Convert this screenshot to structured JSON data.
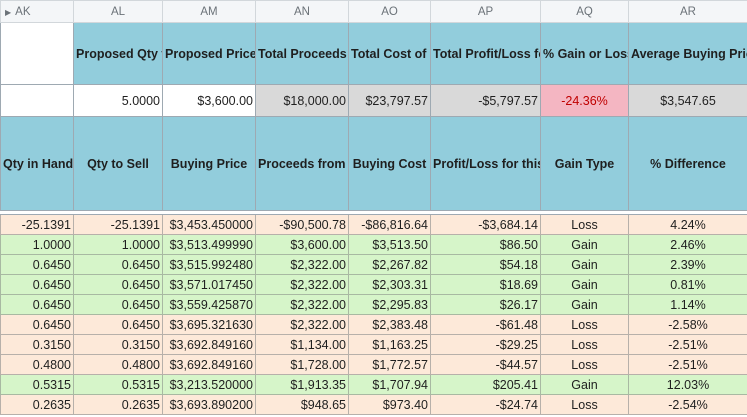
{
  "column_headers": [
    "AK",
    "AL",
    "AM",
    "AN",
    "AO",
    "AP",
    "AQ",
    "AR"
  ],
  "header_row": {
    "al": "Proposed Qty to Sell",
    "am": "Proposed Price to Sell",
    "an": "Total Proceeds from Sell",
    "ao": "Total Cost of Buying",
    "ap": "Total Profit/Loss for this transaction",
    "aq": "% Gain or Loss",
    "ar": "Average Buying Price of Total Available Coins"
  },
  "summary_row": {
    "qty": "5.0000",
    "price": "$3,600.00",
    "proceeds": "$18,000.00",
    "cost": "$23,797.57",
    "profit": "-$5,797.57",
    "gain_pct": "-24.36%",
    "avg_price": "$3,547.65"
  },
  "table_header": {
    "ak": "Qty in Hand",
    "al": "Qty to Sell",
    "am": "Buying Price",
    "an": "Proceeds from Sell",
    "ao": "Buying Cost",
    "ap": "Profit/Loss for this transaction",
    "aq": "Gain Type",
    "ar": "% Difference"
  },
  "rows": [
    {
      "qty_hand": "-25.1391",
      "qty_sell": "-25.1391",
      "buy_price": "$3,453.450000",
      "proceeds": "-$90,500.78",
      "cost": "-$86,816.64",
      "profit": "-$3,684.14",
      "type": "Loss",
      "diff": "4.24%"
    },
    {
      "qty_hand": "1.0000",
      "qty_sell": "1.0000",
      "buy_price": "$3,513.499990",
      "proceeds": "$3,600.00",
      "cost": "$3,513.50",
      "profit": "$86.50",
      "type": "Gain",
      "diff": "2.46%"
    },
    {
      "qty_hand": "0.6450",
      "qty_sell": "0.6450",
      "buy_price": "$3,515.992480",
      "proceeds": "$2,322.00",
      "cost": "$2,267.82",
      "profit": "$54.18",
      "type": "Gain",
      "diff": "2.39%"
    },
    {
      "qty_hand": "0.6450",
      "qty_sell": "0.6450",
      "buy_price": "$3,571.017450",
      "proceeds": "$2,322.00",
      "cost": "$2,303.31",
      "profit": "$18.69",
      "type": "Gain",
      "diff": "0.81%"
    },
    {
      "qty_hand": "0.6450",
      "qty_sell": "0.6450",
      "buy_price": "$3,559.425870",
      "proceeds": "$2,322.00",
      "cost": "$2,295.83",
      "profit": "$26.17",
      "type": "Gain",
      "diff": "1.14%"
    },
    {
      "qty_hand": "0.6450",
      "qty_sell": "0.6450",
      "buy_price": "$3,695.321630",
      "proceeds": "$2,322.00",
      "cost": "$2,383.48",
      "profit": "-$61.48",
      "type": "Loss",
      "diff": "-2.58%"
    },
    {
      "qty_hand": "0.3150",
      "qty_sell": "0.3150",
      "buy_price": "$3,692.849160",
      "proceeds": "$1,134.00",
      "cost": "$1,163.25",
      "profit": "-$29.25",
      "type": "Loss",
      "diff": "-2.51%"
    },
    {
      "qty_hand": "0.4800",
      "qty_sell": "0.4800",
      "buy_price": "$3,692.849160",
      "proceeds": "$1,728.00",
      "cost": "$1,772.57",
      "profit": "-$44.57",
      "type": "Loss",
      "diff": "-2.51%"
    },
    {
      "qty_hand": "0.5315",
      "qty_sell": "0.5315",
      "buy_price": "$3,213.520000",
      "proceeds": "$1,913.35",
      "cost": "$1,707.94",
      "profit": "$205.41",
      "type": "Gain",
      "diff": "12.03%"
    },
    {
      "qty_hand": "0.2635",
      "qty_sell": "0.2635",
      "buy_price": "$3,693.890200",
      "proceeds": "$948.65",
      "cost": "$973.40",
      "profit": "-$24.74",
      "type": "Loss",
      "diff": "-2.54%"
    }
  ],
  "colors": {
    "header_blue": "#92cddc",
    "gain_green": "#d6f5c9",
    "loss_peach": "#fde9d9",
    "negative_pink": "#f4b6c2",
    "negative_text": "#c00000",
    "summary_grey": "#d9d9d9"
  },
  "icons": {
    "corner": "triangle-right-icon"
  }
}
